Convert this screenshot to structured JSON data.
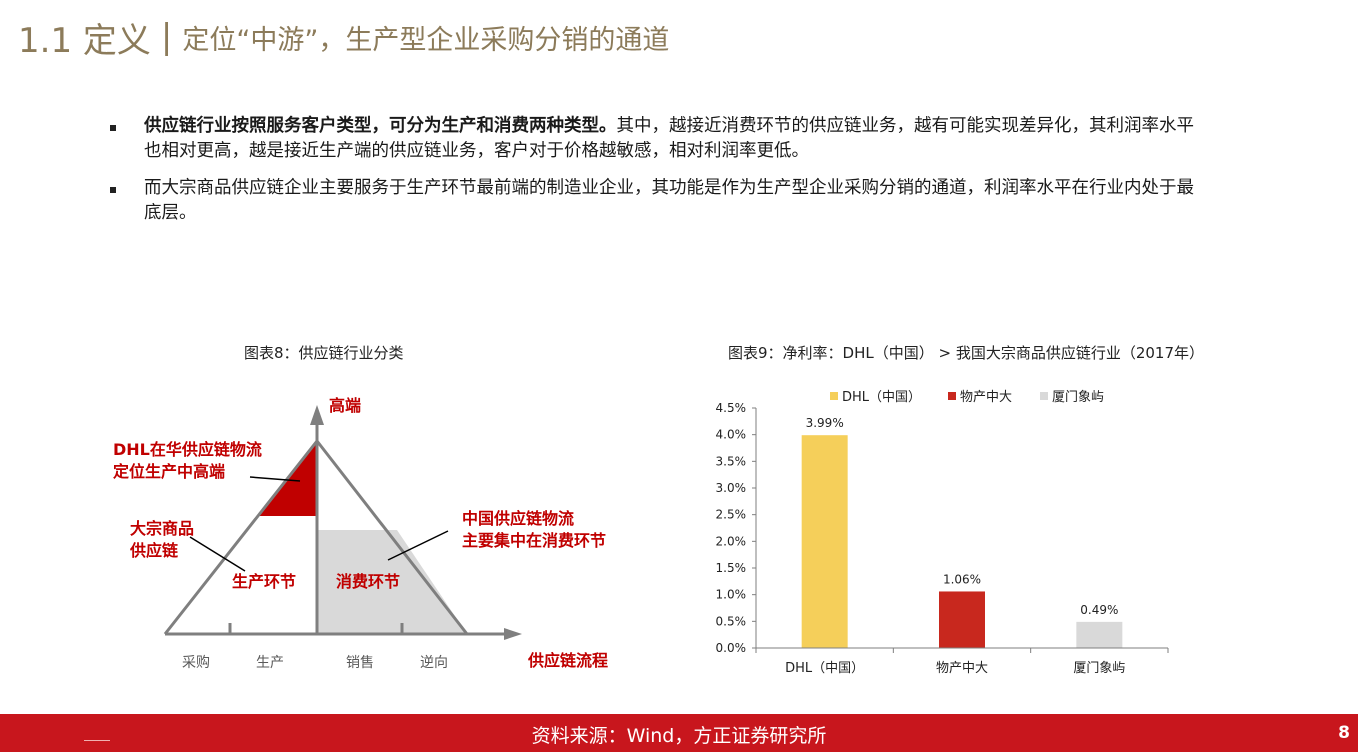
{
  "header": {
    "section_number": "1.1 定义",
    "divider": "|",
    "title": "定位“中游”，生产型企业采购分销的通道"
  },
  "bullets": [
    {
      "bold": "供应链行业按照服务客户类型，可分为生产和消费两种类型。",
      "text": "其中，越接近消费环节的供应链业务，越有可能实现差异化，其利润率水平也相对更高，越是接近生产端的供应链业务，客户对于价格越敏感，相对利润率更低。"
    },
    {
      "bold": "",
      "text": "而大宗商品供应链企业主要服务于生产环节最前端的制造业企业，其功能是作为生产型企业采购分销的通道，利润率水平在行业内处于最底层。"
    }
  ],
  "figure8": {
    "caption": "图表8：供应链行业分类",
    "top_label": "高端",
    "dhl_label_line1": "DHL在华供应链物流",
    "dhl_label_line2": "定位生产中高端",
    "bulk_label_line1": "大宗商品",
    "bulk_label_line2": "供应链",
    "china_label_line1": "中国供应链物流",
    "china_label_line2": "主要集中在消费环节",
    "production_label": "生产环节",
    "consumption_label": "消费环节",
    "axis_label": "供应链流程",
    "stages": [
      "采购",
      "生产",
      "销售",
      "逆向"
    ],
    "colors": {
      "red": "#c00000",
      "gray": "#d9d9d9",
      "line": "#7f7f7f"
    }
  },
  "figure9": {
    "caption": "图表9：净利率：DHL（中国） > 我国大宗商品供应链行业（2017年）"
  },
  "chart_data": {
    "type": "bar",
    "categories": [
      "DHL（中国）",
      "物产中大",
      "厦门象屿"
    ],
    "values": [
      3.99,
      1.06,
      0.49
    ],
    "data_labels": [
      "3.99%",
      "1.06%",
      "0.49%"
    ],
    "series_names": [
      "DHL（中国）",
      "物产中大",
      "厦门象屿"
    ],
    "colors": [
      "#f5cf5a",
      "#c8281e",
      "#d9d9d9"
    ],
    "ylim": [
      0,
      4.5
    ],
    "yticks": [
      "0.0%",
      "0.5%",
      "1.0%",
      "1.5%",
      "2.0%",
      "2.5%",
      "3.0%",
      "3.5%",
      "4.0%",
      "4.5%"
    ],
    "legend": "top",
    "grid": false
  },
  "footer": {
    "source": "资料来源：Wind，方正证券研究所",
    "page": "8"
  }
}
